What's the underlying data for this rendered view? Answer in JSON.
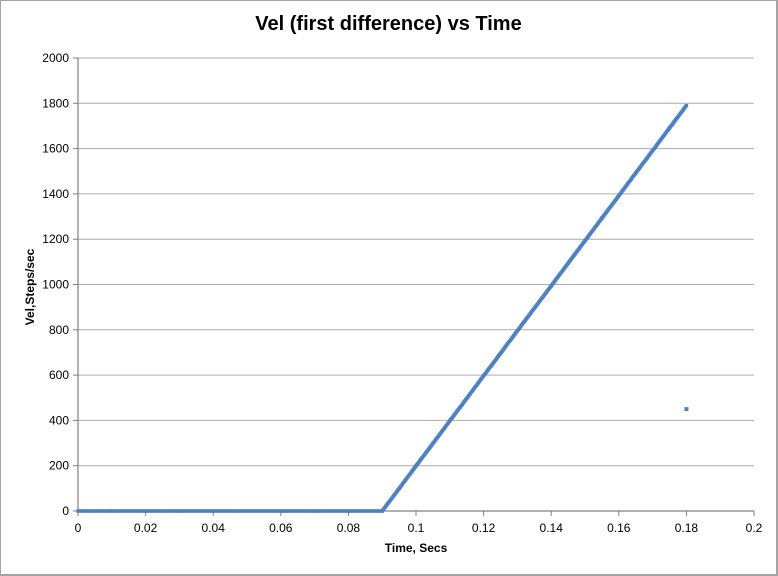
{
  "chart_data": {
    "type": "scatter",
    "title": "Vel (first difference) vs Time",
    "xlabel": "Time, Secs",
    "ylabel": "Vel,Steps/sec",
    "xlim": [
      0,
      0.2
    ],
    "ylim": [
      0,
      2000
    ],
    "x_ticks": [
      0,
      0.02,
      0.04,
      0.06,
      0.08,
      0.1,
      0.12,
      0.14,
      0.16,
      0.18,
      0.2
    ],
    "x_tick_labels": [
      "0",
      "0.02",
      "0.04",
      "0.06",
      "0.08",
      "0.1",
      "0.12",
      "0.14",
      "0.16",
      "0.18",
      "0.2"
    ],
    "y_ticks": [
      0,
      200,
      400,
      600,
      800,
      1000,
      1200,
      1400,
      1600,
      1800,
      2000
    ],
    "y_tick_labels": [
      "0",
      "200",
      "400",
      "600",
      "800",
      "1000",
      "1200",
      "1400",
      "1600",
      "1800",
      "2000"
    ],
    "grid": "horizontal-major-only",
    "legend": "none",
    "colors": {
      "series": "#4F81BD",
      "gridline": "#ACACAC",
      "axis_line": "#808080",
      "tick_text": "#000000",
      "chart_border": "#A3A3A3",
      "background": "#FFFFFF"
    },
    "series": [
      {
        "name": "Vel (first difference)",
        "marker": "square",
        "marker_color": "#4F81BD",
        "segments": [
          {
            "label": "rest-phase-zero-velocity",
            "points": [
              [
                0,
                0
              ],
              [
                0.01,
                0
              ],
              [
                0.02,
                0
              ],
              [
                0.03,
                0
              ],
              [
                0.04,
                0
              ],
              [
                0.05,
                0
              ],
              [
                0.06,
                0
              ],
              [
                0.07,
                0
              ],
              [
                0.08,
                0
              ],
              [
                0.09,
                0
              ]
            ]
          },
          {
            "label": "linear-acceleration-ramp",
            "points": [
              [
                0.09,
                0
              ],
              [
                0.095,
                99
              ],
              [
                0.1,
                199
              ],
              [
                0.105,
                298
              ],
              [
                0.11,
                398
              ],
              [
                0.115,
                497
              ],
              [
                0.12,
                597
              ],
              [
                0.125,
                696
              ],
              [
                0.13,
                796
              ],
              [
                0.135,
                895
              ],
              [
                0.14,
                994
              ],
              [
                0.145,
                1094
              ],
              [
                0.15,
                1193
              ],
              [
                0.155,
                1293
              ],
              [
                0.16,
                1392
              ],
              [
                0.165,
                1492
              ],
              [
                0.17,
                1591
              ],
              [
                0.175,
                1691
              ],
              [
                0.18,
                1790
              ]
            ]
          },
          {
            "label": "outlier-final-point",
            "points": [
              [
                0.18,
                450
              ]
            ]
          }
        ]
      }
    ]
  }
}
